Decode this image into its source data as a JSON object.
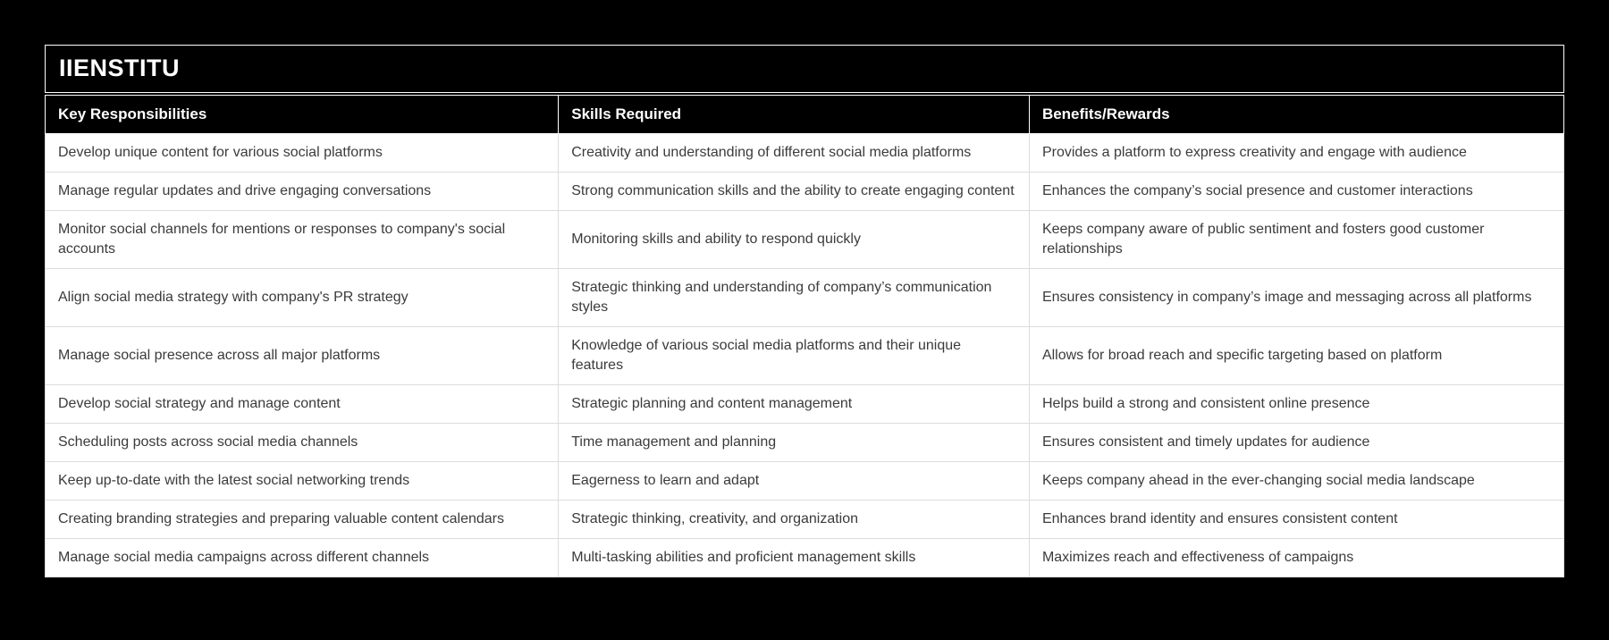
{
  "page": {
    "background_color": "#000000",
    "row_background_color": "#ffffff",
    "header_background_color": "#000000",
    "body_text_color": "#3b3b3b",
    "header_text_color": "#ffffff"
  },
  "card": {
    "title": "IIENSTITU"
  },
  "table": {
    "columns": [
      "Key Responsibilities",
      "Skills Required",
      "Benefits/Rewards"
    ],
    "rows": [
      [
        "Develop unique content for various social platforms",
        "Creativity and understanding of different social media platforms",
        "Provides a platform to express creativity and engage with audience"
      ],
      [
        "Manage regular updates and drive engaging conversations",
        "Strong communication skills and the ability to create engaging content",
        "Enhances the company’s social presence and customer interactions"
      ],
      [
        "Monitor social channels for mentions or responses to company's social accounts",
        "Monitoring skills and ability to respond quickly",
        "Keeps company aware of public sentiment and fosters good customer relationships"
      ],
      [
        "Align social media strategy with company's PR strategy",
        "Strategic thinking and understanding of company’s communication styles",
        "Ensures consistency in company’s image and messaging across all platforms"
      ],
      [
        "Manage social presence across all major platforms",
        "Knowledge of various social media platforms and their unique features",
        "Allows for broad reach and specific targeting based on platform"
      ],
      [
        "Develop social strategy and manage content",
        "Strategic planning and content management",
        "Helps build a strong and consistent online presence"
      ],
      [
        "Scheduling posts across social media channels",
        "Time management and planning",
        "Ensures consistent and timely updates for audience"
      ],
      [
        "Keep up-to-date with the latest social networking trends",
        "Eagerness to learn and adapt",
        "Keeps company ahead in the ever-changing social media landscape"
      ],
      [
        "Creating branding strategies and preparing valuable content calendars",
        "Strategic thinking, creativity, and organization",
        "Enhances brand identity and ensures consistent content"
      ],
      [
        "Manage social media campaigns across different channels",
        "Multi-tasking abilities and proficient management skills",
        "Maximizes reach and effectiveness of campaigns"
      ]
    ]
  }
}
